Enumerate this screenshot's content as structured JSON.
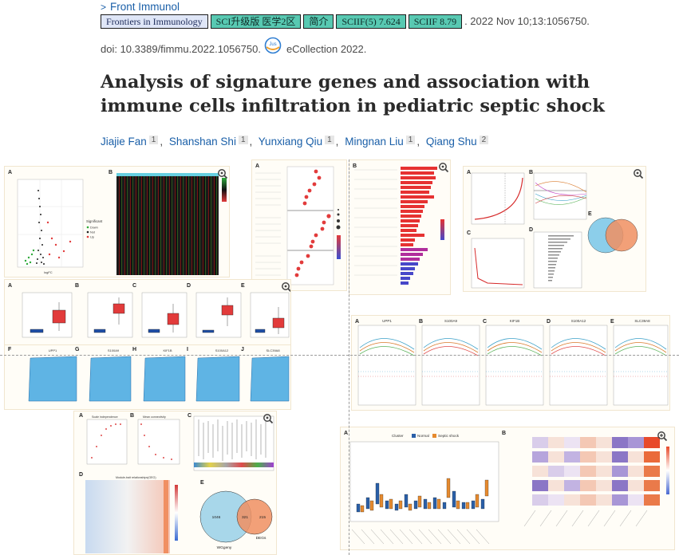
{
  "header": {
    "journal_link": "Front Immunol",
    "badges": [
      {
        "text": "Frontiers in Immunology",
        "kind": "journal"
      },
      {
        "text": "SCI升级版 医学2区",
        "kind": "sci"
      },
      {
        "text": "简介",
        "kind": "intro"
      },
      {
        "text": "SCIIF(5) 7.624",
        "kind": "iif"
      },
      {
        "text": "SCIIF 8.79",
        "kind": "iif"
      }
    ],
    "pub_date": ". 2022 Nov 10;13:1056750.",
    "doi": "doi: 10.3389/fimmu.2022.1056750.",
    "ecollection": "eCollection 2022."
  },
  "article": {
    "title": "Analysis of signature genes and association with immune cells infiltration in pediatric septic shock",
    "authors": [
      {
        "name": "Jiajie Fan",
        "aff": "1"
      },
      {
        "name": "Shanshan Shi",
        "aff": "1"
      },
      {
        "name": "Yunxiang Qiu",
        "aff": "1"
      },
      {
        "name": "Mingnan Liu",
        "aff": "1"
      },
      {
        "name": "Qiang Shu",
        "aff": "2"
      }
    ]
  },
  "figure": {
    "fig1": {
      "labels": [
        "A",
        "B"
      ],
      "legend_title": "Significant",
      "legend_items": [
        "Down",
        "Not",
        "Up"
      ]
    },
    "fig2": {
      "labels": [
        "A"
      ]
    },
    "fig3": {
      "labels": [
        "B"
      ]
    },
    "fig4": {
      "labels": [
        "A",
        "B",
        "C",
        "D",
        "E"
      ]
    },
    "fig5_top": {
      "labels": [
        "A",
        "B",
        "C",
        "D",
        "E"
      ]
    },
    "fig5_bottom": {
      "labels": [
        "F",
        "G",
        "H",
        "I",
        "J"
      ],
      "genes": [
        "UPP1",
        "S100A9",
        "KIF1B",
        "S100A12",
        "SLC39A8"
      ]
    },
    "fig6": {
      "labels": [
        "A",
        "B",
        "C",
        "D",
        "E"
      ],
      "genes": [
        "UPP1",
        "S100A9",
        "KIF1B",
        "S100A12",
        "SLC39A8"
      ]
    },
    "fig7": {
      "labels": [
        "A",
        "B",
        "C",
        "D",
        "E"
      ],
      "titles": [
        "Scale independence",
        "Mean connectivity",
        "Module-trait relationships(GEO)"
      ],
      "venn": [
        "1046",
        "321",
        "215"
      ],
      "venn_labels": [
        "WGgeny",
        "DEGs"
      ]
    },
    "fig8": {
      "labels": [
        "A",
        "B"
      ],
      "legend_title": "Cluster",
      "legend_items": [
        "Normal",
        "Septic shock"
      ]
    }
  }
}
